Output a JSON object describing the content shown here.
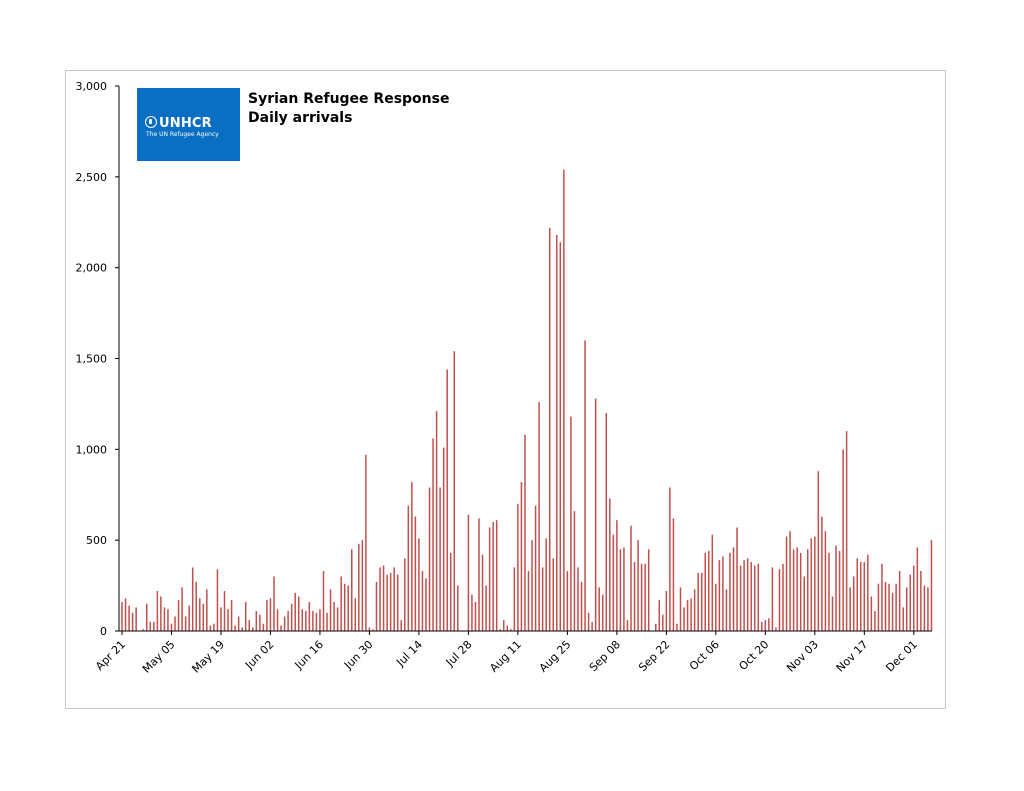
{
  "chart_data": {
    "type": "bar",
    "title": "Syrian Refugee Response",
    "subtitle": "Daily arrivals",
    "logo": {
      "text": "UNHCR",
      "subtext": "The UN Refugee Agency",
      "color": "#0a6fc2"
    },
    "bar_color": "#c0504d",
    "ylim": [
      0,
      3000
    ],
    "y_ticks": [
      "0",
      "500",
      "1,000",
      "1,500",
      "2,000",
      "2,500",
      "3,000"
    ],
    "y_tick_values": [
      0,
      500,
      1000,
      1500,
      2000,
      2500,
      3000
    ],
    "x_tick_labels": [
      "Apr 21",
      "May 05",
      "May 19",
      "Jun 02",
      "Jun 16",
      "Jun 30",
      "Jul 14",
      "Jul 28",
      "Aug 11",
      "Aug 25",
      "Sep 08",
      "Sep 22",
      "Oct 06",
      "Oct 20",
      "Nov 03",
      "Nov 17",
      "Dec 01"
    ],
    "x_tick_day_index": [
      0,
      14,
      28,
      42,
      56,
      70,
      84,
      98,
      112,
      126,
      140,
      154,
      168,
      182,
      196,
      210,
      224
    ],
    "start_label": "Apr 21",
    "values": [
      160,
      180,
      140,
      100,
      130,
      0,
      10,
      150,
      50,
      50,
      220,
      190,
      130,
      120,
      40,
      80,
      170,
      240,
      80,
      140,
      350,
      270,
      180,
      150,
      230,
      30,
      40,
      340,
      130,
      220,
      120,
      170,
      30,
      80,
      20,
      160,
      60,
      20,
      110,
      90,
      40,
      170,
      180,
      300,
      120,
      30,
      80,
      110,
      150,
      210,
      190,
      120,
      110,
      160,
      110,
      100,
      120,
      330,
      100,
      230,
      160,
      130,
      300,
      260,
      250,
      450,
      180,
      480,
      500,
      970,
      20,
      10,
      270,
      350,
      360,
      310,
      320,
      350,
      310,
      60,
      400,
      690,
      820,
      630,
      510,
      330,
      290,
      790,
      1060,
      1210,
      790,
      1010,
      1440,
      430,
      1540,
      250,
      0,
      0,
      640,
      200,
      160,
      620,
      420,
      250,
      570,
      600,
      610,
      10,
      60,
      30,
      10,
      350,
      700,
      820,
      1080,
      330,
      500,
      690,
      1260,
      350,
      510,
      2220,
      400,
      2180,
      2140,
      2540,
      330,
      1180,
      660,
      350,
      270,
      1600,
      100,
      50,
      1280,
      240,
      200,
      1200,
      730,
      530,
      610,
      450,
      460,
      60,
      580,
      380,
      500,
      370,
      370,
      450,
      0,
      40,
      170,
      90,
      220,
      790,
      620,
      40,
      240,
      130,
      170,
      180,
      230,
      320,
      320,
      430,
      440,
      530,
      260,
      390,
      410,
      230,
      430,
      460,
      570,
      360,
      390,
      400,
      380,
      360,
      370,
      50,
      60,
      70,
      350,
      20,
      340,
      370,
      520,
      550,
      450,
      460,
      430,
      300,
      450,
      510,
      520,
      880,
      630,
      550,
      430,
      190,
      470,
      440,
      1000,
      1100,
      240,
      300,
      400,
      380,
      380,
      420,
      190,
      110,
      260,
      370,
      270,
      260,
      210,
      260,
      330,
      130,
      240,
      310,
      360,
      460,
      330,
      250,
      240,
      500
    ]
  }
}
